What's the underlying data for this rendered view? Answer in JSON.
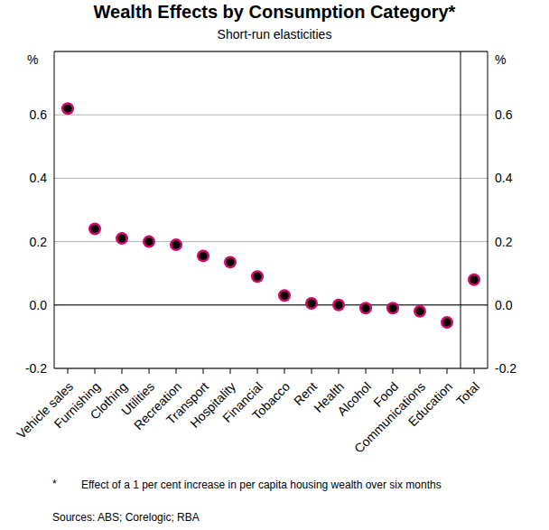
{
  "chart_data": {
    "type": "scatter",
    "title": "Wealth Effects by Consumption Category*",
    "subtitle": "Short-run elasticities",
    "ylabel": "%",
    "y2label": "%",
    "categories": [
      "Vehicle sales",
      "Furnishing",
      "Clothing",
      "Utilities",
      "Recreation",
      "Transport",
      "Hospitality",
      "Financial",
      "Tobacco",
      "Rent",
      "Health",
      "Alcohol",
      "Food",
      "Communications",
      "Education",
      "Total"
    ],
    "values": [
      0.62,
      0.24,
      0.21,
      0.2,
      0.19,
      0.155,
      0.135,
      0.09,
      0.03,
      0.005,
      0.0,
      -0.01,
      -0.01,
      -0.02,
      -0.055,
      0.08
    ],
    "color": "#d10a6a",
    "marker": "circle",
    "ylim": [
      -0.2,
      0.8
    ],
    "yticks": [
      -0.2,
      {
        "value": 0,
        "label": "0.0"
      },
      0.2,
      0.4,
      0.6
    ],
    "y2lim": [
      -0.2,
      0.8
    ],
    "y2ticks": [
      -0.2,
      {
        "value": 0,
        "label": "0.0"
      },
      0.2,
      0.4,
      0.6
    ],
    "grid": true,
    "footnote_marker": "*",
    "footnote": "Effect of a 1 per cent increase in per capita housing wealth over six months",
    "source": "Sources: ABS; Corelogic; RBA"
  }
}
